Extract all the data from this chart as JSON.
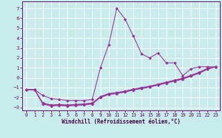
{
  "xlabel": "Windchill (Refroidissement éolien,°C)",
  "background_color": "#c8ecec",
  "grid_color": "#ffffff",
  "line_color": "#993399",
  "xlim": [
    -0.5,
    23.5
  ],
  "ylim": [
    -3.3,
    7.7
  ],
  "xticks": [
    0,
    1,
    2,
    3,
    4,
    5,
    6,
    7,
    8,
    9,
    10,
    11,
    12,
    13,
    14,
    15,
    16,
    17,
    18,
    19,
    20,
    21,
    22,
    23
  ],
  "yticks": [
    -3,
    -2,
    -1,
    0,
    1,
    2,
    3,
    4,
    5,
    6,
    7
  ],
  "series": [
    {
      "x": [
        0,
        1,
        2,
        3,
        4,
        5,
        6,
        7,
        8,
        9,
        10,
        11,
        12,
        13,
        14,
        15,
        16,
        17,
        18,
        19,
        20,
        21,
        22,
        23
      ],
      "y": [
        -1.2,
        -1.2,
        -1.8,
        -2.1,
        -2.2,
        -2.3,
        -2.3,
        -2.3,
        -2.2,
        1.0,
        3.3,
        7.0,
        5.9,
        4.2,
        2.4,
        2.0,
        2.5,
        1.5,
        1.5,
        0.2,
        0.9,
        1.1,
        1.1,
        1.1
      ]
    },
    {
      "x": [
        0,
        1,
        2,
        3,
        4,
        5,
        6,
        7,
        8,
        9,
        10,
        11,
        12,
        13,
        14,
        15,
        16,
        17,
        18,
        19,
        20,
        21,
        22,
        23
      ],
      "y": [
        -1.2,
        -1.2,
        -2.6,
        -2.8,
        -2.75,
        -2.8,
        -2.75,
        -2.7,
        -2.6,
        -1.9,
        -1.6,
        -1.5,
        -1.35,
        -1.15,
        -1.0,
        -0.85,
        -0.65,
        -0.45,
        -0.25,
        -0.05,
        0.25,
        0.55,
        0.95,
        1.1
      ]
    },
    {
      "x": [
        0,
        1,
        2,
        3,
        4,
        5,
        6,
        7,
        8,
        9,
        10,
        11,
        12,
        13,
        14,
        15,
        16,
        17,
        18,
        19,
        20,
        21,
        22,
        23
      ],
      "y": [
        -1.2,
        -1.2,
        -2.65,
        -2.85,
        -2.8,
        -2.85,
        -2.8,
        -2.75,
        -2.65,
        -2.0,
        -1.7,
        -1.6,
        -1.45,
        -1.25,
        -1.1,
        -0.95,
        -0.75,
        -0.55,
        -0.35,
        -0.15,
        0.15,
        0.45,
        0.85,
        1.1
      ]
    },
    {
      "x": [
        0,
        1,
        2,
        3,
        4,
        5,
        6,
        7,
        8,
        9,
        10,
        11,
        12,
        13,
        14,
        15,
        16,
        17,
        18,
        19,
        20,
        21,
        22,
        23
      ],
      "y": [
        -1.2,
        -1.2,
        -2.55,
        -2.75,
        -2.7,
        -2.75,
        -2.7,
        -2.65,
        -2.55,
        -1.95,
        -1.65,
        -1.55,
        -1.4,
        -1.2,
        -1.05,
        -0.9,
        -0.7,
        -0.5,
        -0.3,
        -0.1,
        0.2,
        0.5,
        0.9,
        1.1
      ]
    }
  ]
}
